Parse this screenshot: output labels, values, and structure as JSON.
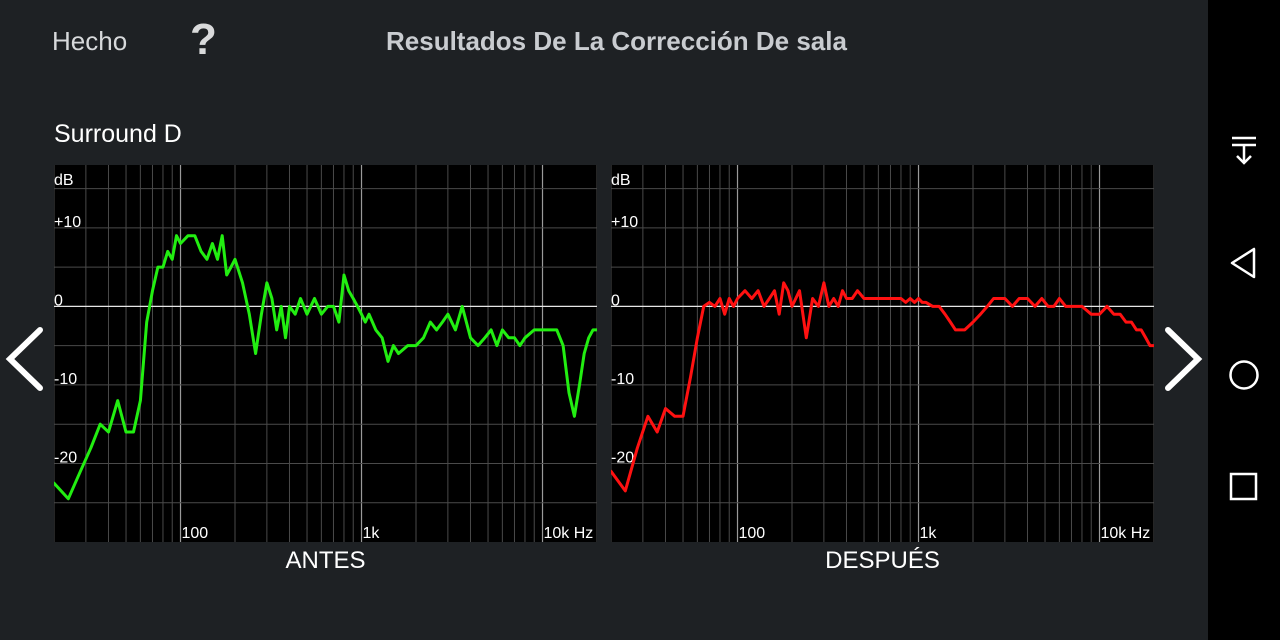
{
  "header": {
    "done_label": "Hecho",
    "help_label": "?",
    "title": "Resultados De La Corrección De sala"
  },
  "channel": {
    "name": "Surround D"
  },
  "colors": {
    "background": "#1e2124",
    "plot_background": "#000000",
    "before_line": "#22ee11",
    "after_line": "#ff1111",
    "grid": "#5a5a5a"
  },
  "chart_data": [
    {
      "type": "line",
      "caption": "ANTES",
      "ylabel": "dB",
      "xlabel": "Hz",
      "x_scale": "log",
      "xlim": [
        20,
        20000
      ],
      "ylim": [
        -30,
        18
      ],
      "y_ticks": [
        "+10",
        "0",
        "-10",
        "-20"
      ],
      "x_ticks": [
        "100",
        "1k",
        "10k Hz"
      ],
      "series": [
        {
          "color": "#22ee11",
          "x": [
            20,
            24,
            28,
            32,
            36,
            40,
            45,
            50,
            55,
            60,
            65,
            70,
            75,
            80,
            85,
            90,
            95,
            100,
            110,
            120,
            130,
            140,
            150,
            160,
            170,
            180,
            190,
            200,
            220,
            240,
            260,
            280,
            300,
            320,
            340,
            360,
            380,
            400,
            430,
            460,
            500,
            550,
            600,
            650,
            700,
            750,
            800,
            850,
            900,
            950,
            1000,
            1050,
            1100,
            1200,
            1300,
            1400,
            1500,
            1600,
            1800,
            2000,
            2200,
            2400,
            2600,
            2800,
            3000,
            3300,
            3600,
            4000,
            4400,
            4800,
            5200,
            5600,
            6000,
            6500,
            7000,
            7500,
            8000,
            9000,
            10000,
            11000,
            12000,
            13000,
            14000,
            15000,
            16000,
            17000,
            18000,
            19000,
            20000
          ],
          "y": [
            -22.5,
            -24.5,
            -21,
            -18,
            -15,
            -16,
            -12,
            -16,
            -16,
            -12,
            -2,
            2,
            5,
            5,
            7,
            6,
            9,
            8,
            9,
            9,
            7,
            6,
            8,
            6,
            9,
            4,
            5,
            6,
            3,
            -1,
            -6,
            -1,
            3,
            1,
            -3,
            0,
            -4,
            0,
            -1,
            1,
            -1,
            1,
            -1,
            0,
            0,
            -2,
            4,
            2,
            1,
            0,
            -1,
            -2,
            -1,
            -3,
            -4,
            -7,
            -5,
            -6,
            -5,
            -5,
            -4,
            -2,
            -3,
            -2,
            -1,
            -3,
            0,
            -4,
            -5,
            -4,
            -3,
            -5,
            -3,
            -4,
            -4,
            -5,
            -4,
            -3,
            -3,
            -3,
            -3,
            -5,
            -11,
            -14,
            -10,
            -6,
            -4,
            -3,
            -3
          ],
          "note_unused": ""
        }
      ]
    },
    {
      "type": "line",
      "caption": "DESPUÉS",
      "ylabel": "dB",
      "xlabel": "Hz",
      "x_scale": "log",
      "xlim": [
        20,
        20000
      ],
      "ylim": [
        -30,
        18
      ],
      "y_ticks": [
        "+10",
        "0",
        "-10",
        "-20"
      ],
      "x_ticks": [
        "100",
        "1k",
        "10k Hz"
      ],
      "series": [
        {
          "color": "#ff1111",
          "x": [
            20,
            24,
            28,
            32,
            36,
            40,
            45,
            50,
            55,
            60,
            65,
            70,
            75,
            80,
            85,
            90,
            95,
            100,
            110,
            120,
            130,
            140,
            150,
            160,
            170,
            180,
            190,
            200,
            220,
            240,
            260,
            280,
            300,
            320,
            340,
            360,
            380,
            400,
            430,
            460,
            500,
            550,
            600,
            650,
            700,
            750,
            800,
            850,
            900,
            950,
            1000,
            1050,
            1100,
            1200,
            1300,
            1400,
            1500,
            1600,
            1800,
            2000,
            2200,
            2400,
            2600,
            2800,
            3000,
            3300,
            3600,
            4000,
            4400,
            4800,
            5200,
            5600,
            6000,
            6500,
            7000,
            7500,
            8000,
            9000,
            10000,
            11000,
            12000,
            13000,
            14000,
            15000,
            16000,
            17000,
            18000,
            19000,
            20000
          ],
          "y": [
            -21,
            -23.5,
            -18,
            -14,
            -16,
            -13,
            -14,
            -14,
            -9,
            -4,
            0,
            0.5,
            0,
            1,
            -1,
            1,
            0,
            1,
            2,
            1,
            2,
            0,
            1,
            2,
            -1,
            3,
            2,
            0,
            2,
            -4,
            1,
            0,
            3,
            0,
            1,
            0,
            2,
            1,
            1,
            2,
            1,
            1,
            1,
            1,
            1,
            1,
            1,
            0.5,
            1,
            0.5,
            1,
            0.5,
            0.5,
            0,
            0,
            -1,
            -2,
            -3,
            -3,
            -2,
            -1,
            0,
            1,
            1,
            1,
            0,
            1,
            1,
            0,
            1,
            0,
            0,
            1,
            0,
            0,
            0,
            0,
            -1,
            -1,
            0,
            -1,
            -1,
            -2,
            -2,
            -3,
            -3,
            -4,
            -5,
            -5
          ],
          "note_unused": ""
        }
      ]
    }
  ],
  "navigation": {
    "prev_icon": "chevron-left-icon",
    "next_icon": "chevron-right-icon"
  },
  "system_bar": {
    "icons": [
      "notification-pull-icon",
      "back-icon",
      "home-icon",
      "recents-icon"
    ]
  }
}
